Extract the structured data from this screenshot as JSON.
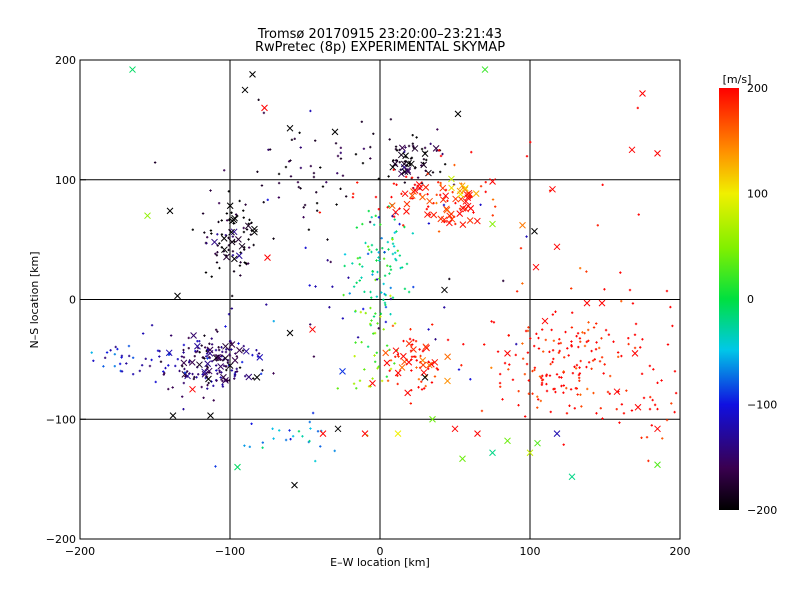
{
  "chart_data": {
    "type": "scatter",
    "title": "Tromsø 20170915 23:20:00–23:21:43",
    "subtitle": "RwPretec (8p) EXPERIMENTAL SKYMAP",
    "xlabel": "E–W location [km]",
    "ylabel": "N–S location [km]",
    "xlim": [
      -200,
      200
    ],
    "ylim": [
      -200,
      200
    ],
    "x_ticks": [
      "−200",
      "−100",
      "0",
      "100",
      "200"
    ],
    "y_ticks": [
      "−200",
      "−100",
      "0",
      "100",
      "200"
    ],
    "grid": true,
    "colorbar": {
      "label": "[m/s]",
      "range": [
        -200,
        200
      ],
      "ticks": [
        "200",
        "100",
        "0",
        "−100",
        "−200"
      ],
      "colormap": "rainbow (black-purple-blue-cyan-green-yellow-orange-red)"
    },
    "marker_legend": "points drawn as small dots (·) and crosses (×); colour encodes velocity in m/s",
    "clusters": [
      {
        "marker": "dot",
        "cx": -110,
        "cy": -52,
        "sx": 14,
        "sy": 12,
        "n": 140,
        "v": -150
      },
      {
        "marker": "cross",
        "cx": -110,
        "cy": -52,
        "sx": 14,
        "sy": 12,
        "n": 30,
        "v": -160
      },
      {
        "marker": "dot",
        "cx": -160,
        "cy": -48,
        "sx": 18,
        "sy": 10,
        "n": 40,
        "v": -110
      },
      {
        "marker": "dot",
        "cx": -100,
        "cy": 48,
        "sx": 12,
        "sy": 20,
        "n": 70,
        "v": -195
      },
      {
        "marker": "cross",
        "cx": -100,
        "cy": 55,
        "sx": 8,
        "sy": 12,
        "n": 18,
        "v": -200
      },
      {
        "marker": "dot",
        "cx": -40,
        "cy": 115,
        "sx": 30,
        "sy": 25,
        "n": 60,
        "v": -185
      },
      {
        "marker": "dot",
        "cx": 0,
        "cy": 35,
        "sx": 10,
        "sy": 22,
        "n": 90,
        "v": -20
      },
      {
        "marker": "dot",
        "cx": -5,
        "cy": -35,
        "sx": 10,
        "sy": 25,
        "n": 40,
        "v": 40
      },
      {
        "marker": "dot",
        "cx": 20,
        "cy": 115,
        "sx": 12,
        "sy": 12,
        "n": 50,
        "v": -185
      },
      {
        "marker": "cross",
        "cx": 18,
        "cy": 110,
        "sx": 8,
        "sy": 10,
        "n": 18,
        "v": -200
      },
      {
        "marker": "dot",
        "cx": 35,
        "cy": 90,
        "sx": 25,
        "sy": 15,
        "n": 60,
        "v": 195
      },
      {
        "marker": "cross",
        "cx": 50,
        "cy": 78,
        "sx": 10,
        "sy": 10,
        "n": 30,
        "v": 190
      },
      {
        "marker": "cross",
        "cx": 55,
        "cy": 93,
        "sx": 5,
        "sy": 4,
        "n": 8,
        "v": 130
      },
      {
        "marker": "cross",
        "cx": 20,
        "cy": 85,
        "sx": 6,
        "sy": 6,
        "n": 12,
        "v": 190
      },
      {
        "marker": "dot",
        "cx": 25,
        "cy": -55,
        "sx": 10,
        "sy": 12,
        "n": 45,
        "v": 200
      },
      {
        "marker": "cross",
        "cx": 25,
        "cy": -55,
        "sx": 8,
        "sy": 10,
        "n": 20,
        "v": 185
      },
      {
        "marker": "dot",
        "cx": 125,
        "cy": -55,
        "sx": 30,
        "sy": 25,
        "n": 170,
        "v": 200
      },
      {
        "marker": "dot",
        "cx": 140,
        "cy": 20,
        "sx": 40,
        "sy": 60,
        "n": 30,
        "v": 200
      },
      {
        "marker": "dot",
        "cx": 185,
        "cy": -95,
        "sx": 8,
        "sy": 15,
        "n": 20,
        "v": 195
      },
      {
        "marker": "dot",
        "cx": -70,
        "cy": -118,
        "sx": 25,
        "sy": 8,
        "n": 25,
        "v": -60
      },
      {
        "marker": "dot",
        "cx": 10,
        "cy": 12,
        "sx": 50,
        "sy": 40,
        "n": 40,
        "v": -120
      }
    ],
    "points": [
      {
        "x": -165,
        "y": 192,
        "v": -10,
        "marker": "cross"
      },
      {
        "x": 70,
        "y": 192,
        "v": 20,
        "marker": "cross"
      },
      {
        "x": -85,
        "y": 188,
        "v": -200,
        "marker": "cross"
      },
      {
        "x": -90,
        "y": 175,
        "v": -200,
        "marker": "cross"
      },
      {
        "x": 175,
        "y": 172,
        "v": 200,
        "marker": "cross"
      },
      {
        "x": 168,
        "y": 125,
        "v": 200,
        "marker": "cross"
      },
      {
        "x": 185,
        "y": 122,
        "v": 200,
        "marker": "cross"
      },
      {
        "x": -60,
        "y": 143,
        "v": -200,
        "marker": "cross"
      },
      {
        "x": 115,
        "y": 92,
        "v": 200,
        "marker": "cross"
      },
      {
        "x": 103,
        "y": 57,
        "v": -200,
        "marker": "cross"
      },
      {
        "x": -155,
        "y": 70,
        "v": 55,
        "marker": "cross"
      },
      {
        "x": -140,
        "y": 74,
        "v": -200,
        "marker": "cross"
      },
      {
        "x": -135,
        "y": 3,
        "v": -200,
        "marker": "cross"
      },
      {
        "x": 43,
        "y": 8,
        "v": -200,
        "marker": "cross"
      },
      {
        "x": -75,
        "y": 35,
        "v": 200,
        "marker": "cross"
      },
      {
        "x": -60,
        "y": -28,
        "v": -200,
        "marker": "cross"
      },
      {
        "x": -45,
        "y": -25,
        "v": 200,
        "marker": "cross"
      },
      {
        "x": 110,
        "y": -18,
        "v": 200,
        "marker": "cross"
      },
      {
        "x": 170,
        "y": -45,
        "v": 200,
        "marker": "cross"
      },
      {
        "x": 172,
        "y": -90,
        "v": 200,
        "marker": "cross"
      },
      {
        "x": 185,
        "y": -108,
        "v": 200,
        "marker": "cross"
      },
      {
        "x": -138,
        "y": -97,
        "v": -200,
        "marker": "cross"
      },
      {
        "x": -113,
        "y": -97,
        "v": -200,
        "marker": "cross"
      },
      {
        "x": -57,
        "y": -155,
        "v": -200,
        "marker": "cross"
      },
      {
        "x": -95,
        "y": -140,
        "v": -10,
        "marker": "cross"
      },
      {
        "x": -38,
        "y": -112,
        "v": 200,
        "marker": "cross"
      },
      {
        "x": -28,
        "y": -108,
        "v": -200,
        "marker": "cross"
      },
      {
        "x": -10,
        "y": -112,
        "v": 200,
        "marker": "cross"
      },
      {
        "x": 12,
        "y": -112,
        "v": 100,
        "marker": "cross"
      },
      {
        "x": 35,
        "y": -100,
        "v": 40,
        "marker": "cross"
      },
      {
        "x": 50,
        "y": -108,
        "v": 200,
        "marker": "cross"
      },
      {
        "x": 65,
        "y": -112,
        "v": 200,
        "marker": "cross"
      },
      {
        "x": 85,
        "y": -118,
        "v": 40,
        "marker": "cross"
      },
      {
        "x": 105,
        "y": -120,
        "v": 30,
        "marker": "cross"
      },
      {
        "x": 118,
        "y": -112,
        "v": -120,
        "marker": "cross"
      },
      {
        "x": 128,
        "y": -148,
        "v": -20,
        "marker": "cross"
      },
      {
        "x": 185,
        "y": -138,
        "v": 30,
        "marker": "cross"
      },
      {
        "x": 75,
        "y": -128,
        "v": -20,
        "marker": "cross"
      },
      {
        "x": 55,
        "y": -133,
        "v": 40,
        "marker": "cross"
      },
      {
        "x": 100,
        "y": -128,
        "v": 80,
        "marker": "cross"
      },
      {
        "x": -82,
        "y": -65,
        "v": -200,
        "marker": "cross"
      },
      {
        "x": -77,
        "y": 160,
        "v": 200,
        "marker": "cross"
      },
      {
        "x": 52,
        "y": 155,
        "v": -200,
        "marker": "cross"
      },
      {
        "x": -30,
        "y": 140,
        "v": -200,
        "marker": "cross"
      },
      {
        "x": 75,
        "y": 63,
        "v": 50,
        "marker": "cross"
      },
      {
        "x": 95,
        "y": 62,
        "v": 150,
        "marker": "cross"
      },
      {
        "x": 118,
        "y": 44,
        "v": 200,
        "marker": "cross"
      },
      {
        "x": 104,
        "y": 27,
        "v": 200,
        "marker": "cross"
      },
      {
        "x": 138,
        "y": -3,
        "v": 200,
        "marker": "cross"
      },
      {
        "x": 148,
        "y": -3,
        "v": 200,
        "marker": "cross"
      },
      {
        "x": 85,
        "y": -45,
        "v": 200,
        "marker": "cross"
      },
      {
        "x": 158,
        "y": -77,
        "v": 200,
        "marker": "cross"
      },
      {
        "x": 45,
        "y": -68,
        "v": 140,
        "marker": "cross"
      },
      {
        "x": -5,
        "y": -70,
        "v": 200,
        "marker": "cross"
      },
      {
        "x": -25,
        "y": -60,
        "v": -90,
        "marker": "cross"
      },
      {
        "x": 30,
        "y": -65,
        "v": -200,
        "marker": "cross"
      },
      {
        "x": -125,
        "y": -75,
        "v": 200,
        "marker": "cross"
      }
    ]
  }
}
